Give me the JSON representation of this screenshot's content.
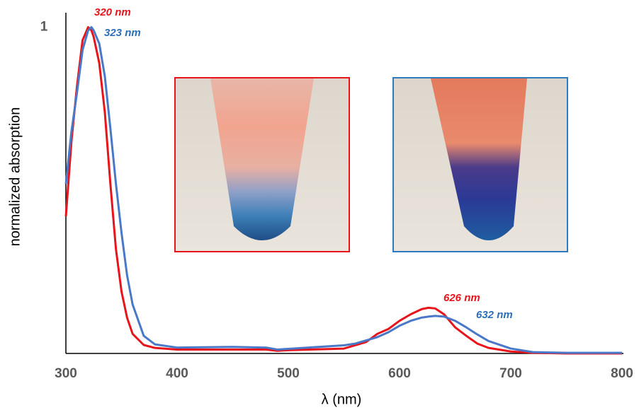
{
  "chart_data": {
    "type": "line",
    "x_label": "λ (nm)",
    "y_label": "normalized absorption",
    "x": [
      300,
      305,
      310,
      315,
      320,
      323,
      325,
      330,
      335,
      340,
      345,
      350,
      355,
      360,
      370,
      380,
      400,
      450,
      480,
      490,
      500,
      550,
      560,
      570,
      580,
      590,
      600,
      610,
      620,
      626,
      632,
      640,
      650,
      660,
      670,
      680,
      700,
      720,
      750,
      800
    ],
    "series": [
      {
        "color": "#e8141b",
        "values": [
          0.42,
          0.65,
          0.82,
          0.96,
          1.0,
          0.99,
          0.97,
          0.89,
          0.74,
          0.52,
          0.32,
          0.19,
          0.11,
          0.06,
          0.026,
          0.017,
          0.012,
          0.012,
          0.012,
          0.008,
          0.01,
          0.015,
          0.025,
          0.035,
          0.06,
          0.075,
          0.1,
          0.12,
          0.136,
          0.14,
          0.138,
          0.12,
          0.08,
          0.054,
          0.03,
          0.017,
          0.006,
          0.002,
          0,
          0
        ]
      },
      {
        "color": "#4a78c8",
        "values": [
          0.52,
          0.68,
          0.8,
          0.93,
          0.99,
          1.0,
          0.99,
          0.95,
          0.85,
          0.69,
          0.52,
          0.37,
          0.24,
          0.15,
          0.054,
          0.028,
          0.018,
          0.02,
          0.018,
          0.012,
          0.014,
          0.025,
          0.03,
          0.04,
          0.05,
          0.065,
          0.085,
          0.1,
          0.11,
          0.113,
          0.115,
          0.113,
          0.1,
          0.08,
          0.058,
          0.038,
          0.015,
          0.004,
          0.002,
          0.002
        ]
      }
    ],
    "annotations": [
      "320 nm",
      "323 nm",
      "626 nm",
      "632 nm"
    ],
    "xlim": [
      300,
      800
    ],
    "xticks": [
      300,
      400,
      500,
      600,
      700,
      800
    ],
    "ylim": [
      0,
      1.04
    ],
    "yticks": [
      1
    ],
    "grid": false
  }
}
